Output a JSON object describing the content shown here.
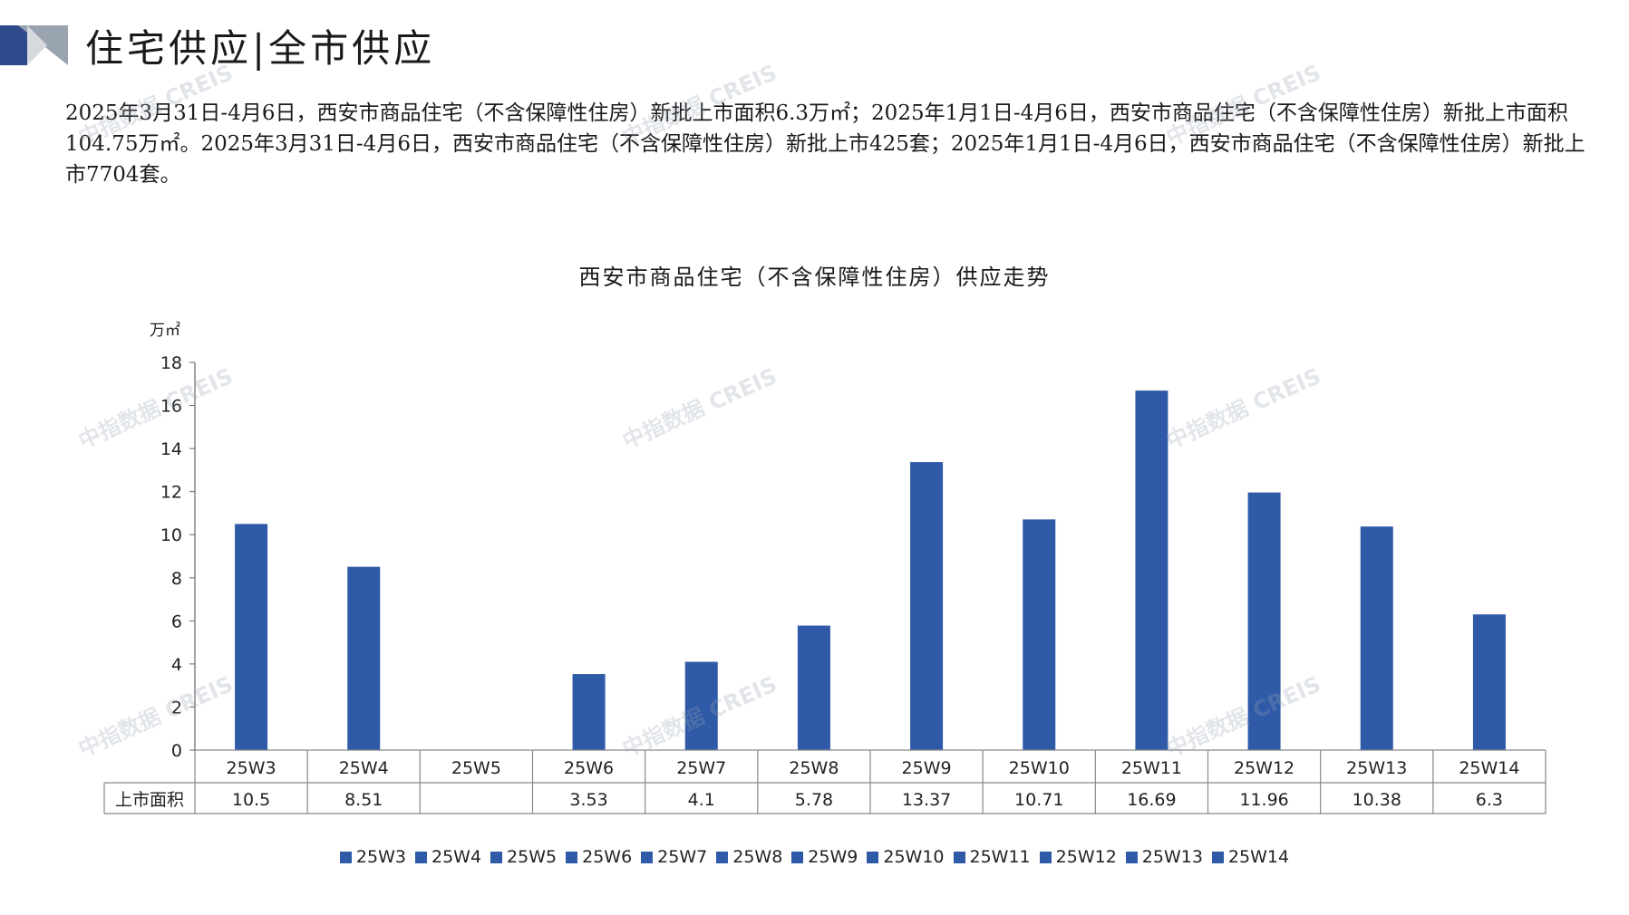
{
  "header": {
    "title": "住宅供应|全市供应"
  },
  "summary": {
    "text": "2025年3月31日-4月6日，西安市商品住宅（不含保障性住房）新批上市面积6.3万㎡；2025年1月1日-4月6日，西安市商品住宅（不含保障性住房）新批上市面积104.75万㎡。2025年3月31日-4月6日，西安市商品住宅（不含保障性住房）新批上市425套；2025年1月1日-4月6日，西安市商品住宅（不含保障性住房）新批上市7704套。"
  },
  "watermark": "中指数据 CREIS",
  "colors": {
    "bar": "#2f5aa8",
    "axis": "#666666",
    "table_border": "#888888"
  },
  "chart_data": {
    "type": "bar",
    "title": "西安市商品住宅（不含保障性住房）供应走势",
    "ylabel": "万㎡",
    "ylim": [
      0,
      18
    ],
    "yticks": [
      0,
      2,
      4,
      6,
      8,
      10,
      12,
      14,
      16,
      18
    ],
    "categories": [
      "25W3",
      "25W4",
      "25W5",
      "25W6",
      "25W7",
      "25W8",
      "25W9",
      "25W10",
      "25W11",
      "25W12",
      "25W13",
      "25W14"
    ],
    "series": [
      {
        "name": "上市面积",
        "values": [
          10.5,
          8.51,
          null,
          3.53,
          4.1,
          5.78,
          13.37,
          10.71,
          16.69,
          11.96,
          10.38,
          6.3
        ],
        "labels": [
          "10.5",
          "8.51",
          "",
          "3.53",
          "4.1",
          "5.78",
          "13.37",
          "10.71",
          "16.69",
          "11.96",
          "10.38",
          "6.3"
        ]
      }
    ],
    "legend": [
      "25W3",
      "25W4",
      "25W5",
      "25W6",
      "25W7",
      "25W8",
      "25W9",
      "25W10",
      "25W11",
      "25W12",
      "25W13",
      "25W14"
    ],
    "legend_position": "bottom",
    "grid": false,
    "data_table": true
  }
}
